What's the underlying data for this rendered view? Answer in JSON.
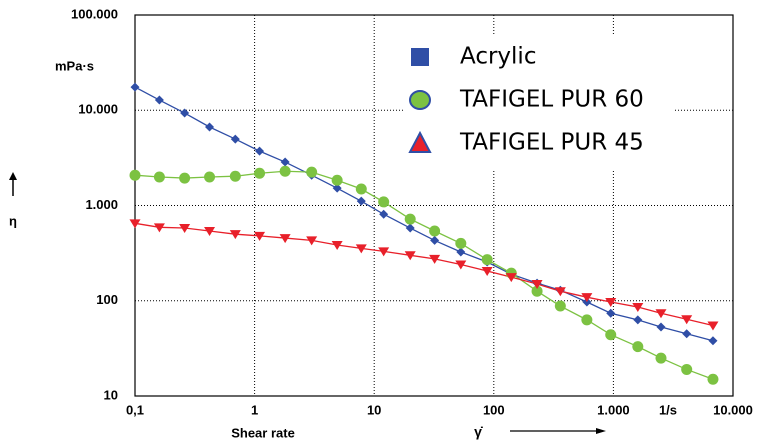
{
  "chart_data": {
    "type": "line",
    "xlabel": "Shear rate",
    "xsymbol": "γ̇",
    "xunit": "1/s",
    "ylabel": "η",
    "yunit": "mPa·s",
    "xscale": "log",
    "yscale": "log",
    "grid": true,
    "legend": "upper right",
    "xlim": [
      0.1,
      10000
    ],
    "ylim": [
      10,
      100000
    ],
    "xticks": [
      {
        "value": 0.1,
        "label": "0,1"
      },
      1,
      10,
      100,
      {
        "value": 1000,
        "label": "1.000"
      },
      {
        "value": 10000,
        "label": "10.000"
      }
    ],
    "yticks": [
      10,
      100,
      {
        "value": 1000,
        "label": "1.000"
      },
      {
        "value": 10000,
        "label": "10.000"
      },
      {
        "value": 100000,
        "label": "100.000"
      }
    ],
    "x": [
      0.1,
      0.16,
      0.26,
      0.42,
      0.69,
      1.1,
      1.8,
      3,
      4.9,
      7.8,
      12,
      20,
      32,
      53,
      88,
      140,
      230,
      360,
      600,
      950,
      1600,
      2500,
      4100,
      6800
    ],
    "series": [
      {
        "name": "Acrylic",
        "color": "#2f4ea6",
        "marker": "diamond",
        "values": [
          17500,
          12800,
          9350,
          6670,
          4980,
          3720,
          2860,
          2080,
          1520,
          1110,
          810,
          580,
          430,
          325,
          255,
          190,
          153,
          129,
          97,
          74,
          63,
          53,
          45,
          38
        ]
      },
      {
        "name": "TAFIGEL PUR 60",
        "color": "#7cc242",
        "marker": "circle",
        "values": [
          2080,
          1990,
          1940,
          1990,
          2030,
          2180,
          2290,
          2240,
          1840,
          1490,
          1090,
          720,
          540,
          400,
          270,
          195,
          126,
          88,
          63,
          44,
          33,
          25,
          19,
          15
        ]
      },
      {
        "name": "TAFIGEL PUR 45",
        "color": "#e8202a",
        "marker": "triangle",
        "values": [
          650,
          590,
          580,
          540,
          500,
          480,
          455,
          430,
          385,
          355,
          330,
          300,
          275,
          240,
          205,
          177,
          150,
          126,
          109,
          97,
          86,
          74,
          64,
          55
        ]
      }
    ]
  }
}
